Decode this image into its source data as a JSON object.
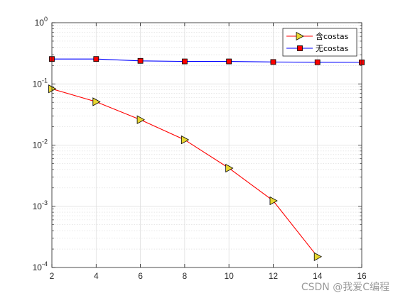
{
  "watermark": "CSDN @我爱C编程",
  "chart_data": {
    "type": "line",
    "title": "",
    "xlabel": "",
    "ylabel": "",
    "x": [
      2,
      4,
      6,
      8,
      10,
      12,
      14,
      16
    ],
    "xlim": [
      2,
      16
    ],
    "xticks": [
      2,
      4,
      6,
      8,
      10,
      12,
      14,
      16
    ],
    "ylim": [
      0.0001,
      1
    ],
    "yscale": "log",
    "yticks": [
      {
        "base": "10",
        "exp": "0",
        "value": 1
      },
      {
        "base": "10",
        "exp": "-1",
        "value": 0.1
      },
      {
        "base": "10",
        "exp": "-2",
        "value": 0.01
      },
      {
        "base": "10",
        "exp": "-3",
        "value": 0.001
      },
      {
        "base": "10",
        "exp": "-4",
        "value": 0.0001
      }
    ],
    "grid": true,
    "legend_position": "top-right",
    "series": [
      {
        "name": "含costas",
        "color": "#ff0000",
        "marker": "triangle-right",
        "marker_fill": "#e8d630",
        "x": [
          2,
          4,
          6,
          8,
          10,
          12,
          14
        ],
        "values": [
          0.083,
          0.051,
          0.026,
          0.0122,
          0.0042,
          0.00123,
          0.00015
        ]
      },
      {
        "name": "无costas",
        "color": "#0000ff",
        "marker": "square",
        "marker_fill": "#ff0000",
        "x": [
          2,
          4,
          6,
          8,
          10,
          12,
          14,
          16
        ],
        "values": [
          0.255,
          0.255,
          0.238,
          0.233,
          0.233,
          0.228,
          0.226,
          0.225
        ]
      }
    ]
  }
}
